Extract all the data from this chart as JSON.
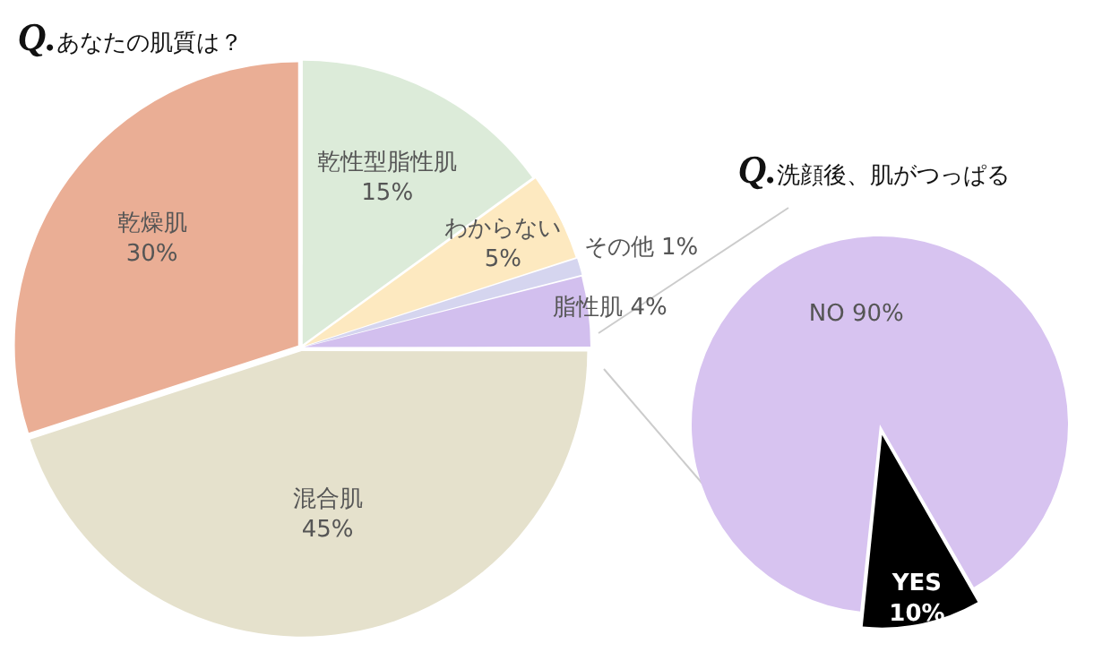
{
  "chart_data": [
    {
      "type": "pie",
      "title": "Q.あなたの肌質は？",
      "categories": [
        "乾性型脂性肌",
        "わからない",
        "その他",
        "脂性肌",
        "混合肌",
        "乾燥肌"
      ],
      "values": [
        15,
        5,
        1,
        4,
        45,
        30
      ],
      "colors": [
        "#dcebd9",
        "#fde9c0",
        "#d5d5ef",
        "#d2bfee",
        "#e5e1cc",
        "#eaae95"
      ],
      "value_labels": [
        "15%",
        "5%",
        "1%",
        "4%",
        "45%",
        "30%"
      ],
      "legend": false
    },
    {
      "type": "pie",
      "title": "Q.洗顔後、肌がつっぱる",
      "categories": [
        "NO",
        "YES"
      ],
      "values": [
        90,
        10
      ],
      "colors": [
        "#d7c3f0",
        "#000000"
      ],
      "value_labels": [
        "90%",
        "10%"
      ],
      "legend": false
    }
  ]
}
